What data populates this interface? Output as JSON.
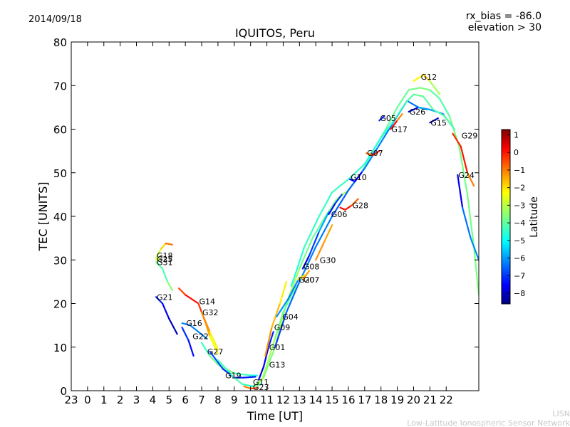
{
  "header": {
    "date": "2014/09/18",
    "rx_bias": "rx_bias = -86.0",
    "elevation": "elevation > 30"
  },
  "footer": {
    "org_short": "LISN",
    "org_full": "Low-Latitude Ionospheric Sensor Network"
  },
  "colorbar": {
    "label": "Latitude",
    "ticks": [
      {
        "value": 1,
        "label": "1"
      },
      {
        "value": 0,
        "label": "0"
      },
      {
        "value": -1,
        "label": "−1"
      },
      {
        "value": -2,
        "label": "−2"
      },
      {
        "value": -3,
        "label": "−3"
      },
      {
        "value": -4,
        "label": "−4"
      },
      {
        "value": -5,
        "label": "−5"
      },
      {
        "value": -6,
        "label": "−6"
      },
      {
        "value": -7,
        "label": "−7"
      },
      {
        "value": -8,
        "label": "−8"
      }
    ],
    "range": [
      -8.6,
      1.3
    ],
    "colors": [
      "#00007f",
      "#0000ff",
      "#007fff",
      "#00ffff",
      "#7fff7f",
      "#ffff00",
      "#ff7f00",
      "#ff0000",
      "#7f0000"
    ]
  },
  "chart_data": {
    "type": "line",
    "title": "IQUITOS, Peru",
    "xlabel": "Time [UT]",
    "ylabel": "TEC [UNITS]",
    "xlim": [
      -1,
      24
    ],
    "ylim": [
      0,
      80
    ],
    "x_ticks": [
      {
        "value": -1,
        "label": "23"
      },
      {
        "value": 0,
        "label": "0"
      },
      {
        "value": 1,
        "label": "1"
      },
      {
        "value": 2,
        "label": "2"
      },
      {
        "value": 3,
        "label": "3"
      },
      {
        "value": 4,
        "label": "4"
      },
      {
        "value": 5,
        "label": "5"
      },
      {
        "value": 6,
        "label": "6"
      },
      {
        "value": 7,
        "label": "7"
      },
      {
        "value": 8,
        "label": "8"
      },
      {
        "value": 9,
        "label": "9"
      },
      {
        "value": 10,
        "label": "10"
      },
      {
        "value": 11,
        "label": "11"
      },
      {
        "value": 12,
        "label": "12"
      },
      {
        "value": 13,
        "label": "13"
      },
      {
        "value": 14,
        "label": "14"
      },
      {
        "value": 15,
        "label": "15"
      },
      {
        "value": 16,
        "label": "16"
      },
      {
        "value": 17,
        "label": "17"
      },
      {
        "value": 18,
        "label": "18"
      },
      {
        "value": 19,
        "label": "19"
      },
      {
        "value": 20,
        "label": "20"
      },
      {
        "value": 21,
        "label": "21"
      },
      {
        "value": 22,
        "label": "22"
      }
    ],
    "y_ticks": [
      0,
      10,
      20,
      30,
      40,
      50,
      60,
      70,
      80
    ],
    "series": [
      {
        "name": "G18",
        "label_at": [
          4.2,
          31
        ],
        "points": [
          [
            4.2,
            30.5,
            -3.5
          ],
          [
            4.5,
            32.5,
            -2.5
          ],
          [
            4.8,
            33.8,
            -1.5
          ],
          [
            5.2,
            33.5,
            -0.5
          ]
        ]
      },
      {
        "name": "G31",
        "label_at": [
          4.2,
          29.5
        ],
        "points": [
          [
            4.2,
            29.5,
            -4.2
          ],
          [
            4.6,
            28.0,
            -3.8
          ],
          [
            4.9,
            25.0,
            -4.5
          ],
          [
            5.2,
            23.0,
            -2.5
          ]
        ]
      },
      {
        "name": "G25",
        "label_at": [
          4.2,
          30.2
        ],
        "points": [
          [
            4.2,
            30.0,
            -3.0
          ],
          [
            4.4,
            30.2,
            -2.8
          ]
        ]
      },
      {
        "name": "G21",
        "label_at": [
          4.2,
          21.5
        ],
        "points": [
          [
            4.2,
            21.5,
            -6.8
          ],
          [
            4.6,
            20.0,
            -7.2
          ],
          [
            5.0,
            16.5,
            -7.8
          ],
          [
            5.5,
            13.0,
            -8.2
          ]
        ]
      },
      {
        "name": "G14",
        "label_at": [
          6.8,
          20.5
        ],
        "points": [
          [
            5.6,
            23.5,
            -1.0
          ],
          [
            6.0,
            22.0,
            -0.3
          ],
          [
            6.8,
            20.0,
            0.2
          ],
          [
            7.2,
            16.0,
            -1.0
          ],
          [
            7.5,
            12.5,
            -2.0
          ],
          [
            8.0,
            8.5,
            -3.0
          ]
        ]
      },
      {
        "name": "G32",
        "label_at": [
          7.0,
          18.0
        ],
        "points": [
          [
            7.0,
            18.0,
            -0.8
          ],
          [
            7.5,
            13.5,
            -1.8
          ],
          [
            8.0,
            9.5,
            -2.8
          ]
        ]
      },
      {
        "name": "G16",
        "label_at": [
          6.0,
          15.5
        ],
        "points": [
          [
            5.8,
            15.5,
            -6.0
          ],
          [
            6.3,
            15.0,
            -6.2
          ],
          [
            6.8,
            13.5,
            -6.0
          ],
          [
            7.3,
            12.0,
            -6.2
          ]
        ]
      },
      {
        "name": "G22",
        "label_at": [
          6.4,
          12.5
        ],
        "points": [
          [
            5.8,
            14.5,
            -6.8
          ],
          [
            6.2,
            11.5,
            -7.0
          ],
          [
            6.5,
            8.0,
            -7.5
          ]
        ]
      },
      {
        "name": "G27",
        "label_at": [
          7.3,
          9.0
        ],
        "points": [
          [
            7.0,
            11.0,
            -4.5
          ],
          [
            7.5,
            8.0,
            -4.0
          ],
          [
            8.0,
            6.0,
            -3.5
          ],
          [
            9.0,
            4.0,
            -4.0
          ],
          [
            10.0,
            3.5,
            -4.5
          ],
          [
            10.4,
            3.5,
            -4.8
          ]
        ]
      },
      {
        "name": "G19",
        "label_at": [
          8.4,
          3.5
        ],
        "points": [
          [
            7.5,
            9.0,
            -6.5
          ],
          [
            8.3,
            5.0,
            -6.8
          ],
          [
            9.0,
            3.0,
            -7.0
          ],
          [
            9.6,
            3.0,
            -7.2
          ],
          [
            10.3,
            3.2,
            -7.0
          ]
        ]
      },
      {
        "name": "G11",
        "label_at": [
          10.1,
          2.0
        ],
        "points": [
          [
            8.0,
            7.0,
            -4.5
          ],
          [
            9.0,
            3.0,
            -4.0
          ],
          [
            9.5,
            1.5,
            -4.2
          ],
          [
            10.1,
            1.0,
            -4.5
          ],
          [
            10.6,
            1.5,
            -4.8
          ]
        ]
      },
      {
        "name": "G23",
        "label_at": [
          10.1,
          0.8
        ],
        "points": [
          [
            9.6,
            1.0,
            -1.5
          ],
          [
            10.0,
            0.5,
            -0.8
          ],
          [
            10.4,
            0.6,
            -0.3
          ]
        ]
      },
      {
        "name": "G13",
        "label_at": [
          11.1,
          6.0
        ],
        "points": [
          [
            10.3,
            1.0,
            -3.0
          ],
          [
            10.7,
            2.5,
            -3.5
          ],
          [
            11.0,
            6.0,
            -3.0
          ],
          [
            11.5,
            12.0,
            -3.5
          ],
          [
            12.0,
            18.0,
            -4.0
          ],
          [
            12.8,
            24.0,
            -3.8
          ]
        ]
      },
      {
        "name": "G01",
        "label_at": [
          11.1,
          10.0
        ],
        "points": [
          [
            10.5,
            2.5,
            -8.0
          ],
          [
            10.8,
            5.5,
            -7.6
          ],
          [
            11.1,
            10.0,
            -7.2
          ],
          [
            11.4,
            13.5,
            -6.8
          ]
        ]
      },
      {
        "name": "G09",
        "label_at": [
          11.4,
          14.5
        ],
        "points": [
          [
            10.9,
            8.0,
            -1.2
          ],
          [
            11.3,
            14.5,
            -1.5
          ],
          [
            11.8,
            20.0,
            -2.0
          ],
          [
            12.2,
            25.0,
            -2.5
          ]
        ]
      },
      {
        "name": "G04",
        "label_at": [
          11.9,
          17.0
        ],
        "points": [
          [
            11.6,
            17.0,
            -5.8
          ],
          [
            12.3,
            21.0,
            -6.0
          ],
          [
            13.0,
            26.0,
            -6.2
          ]
        ]
      },
      {
        "name": "G08",
        "label_at": [
          13.2,
          28.5
        ],
        "points": [
          [
            13.2,
            28.0,
            -8.0
          ],
          [
            13.6,
            31.0,
            -7.5
          ],
          [
            14.2,
            36.5,
            -6.0
          ],
          [
            14.8,
            41.0,
            -5.5
          ]
        ]
      },
      {
        "name": "G20",
        "label_at": [
          12.9,
          25.5
        ],
        "points": [
          [
            12.9,
            25.5,
            -2.0
          ],
          [
            13.3,
            26.5,
            -2.3
          ]
        ]
      },
      {
        "name": "G07",
        "label_at": [
          13.2,
          25.5
        ],
        "points": [
          [
            13.2,
            25.5,
            -1.5
          ],
          [
            13.6,
            27.5,
            -1.5
          ]
        ]
      },
      {
        "name": "G30",
        "label_at": [
          14.2,
          30.0
        ],
        "points": [
          [
            14.0,
            30.0,
            -1.5
          ],
          [
            14.5,
            34.0,
            -1.2
          ],
          [
            15.0,
            38.0,
            -1.8
          ]
        ]
      },
      {
        "name": "G06",
        "label_at": [
          14.9,
          40.5
        ],
        "points": [
          [
            14.8,
            40.5,
            -7.5
          ],
          [
            15.2,
            43.0,
            -7.0
          ],
          [
            15.6,
            45.0,
            -6.5
          ]
        ]
      },
      {
        "name": "G28",
        "label_at": [
          16.2,
          42.5
        ],
        "points": [
          [
            15.5,
            42.0,
            -0.2
          ],
          [
            15.8,
            41.5,
            0.2
          ],
          [
            16.2,
            42.5,
            -0.5
          ],
          [
            16.6,
            44.0,
            -1.2
          ]
        ]
      },
      {
        "name": "G10",
        "label_at": [
          16.1,
          49.0
        ],
        "points": [
          [
            16.1,
            48.5,
            -7.8
          ],
          [
            16.4,
            48.0,
            -7.0
          ],
          [
            16.8,
            50.0,
            -8.0
          ]
        ]
      },
      {
        "name": "G07",
        "label_at": [
          17.1,
          54.5
        ],
        "points": [
          [
            17.1,
            54.5,
            -1.5
          ],
          [
            17.5,
            54.0,
            -0.5
          ],
          [
            17.9,
            55.0,
            0.4
          ]
        ]
      },
      {
        "name": "G05",
        "label_at": [
          17.9,
          62.5
        ],
        "points": [
          [
            17.9,
            62.0,
            -7.5
          ],
          [
            18.2,
            63.0,
            -6.5
          ]
        ]
      },
      {
        "name": "G17",
        "label_at": [
          18.6,
          60.0
        ],
        "points": [
          [
            18.6,
            60.0,
            0.5
          ],
          [
            19.0,
            62.0,
            -0.5
          ],
          [
            19.3,
            63.5,
            -2.0
          ]
        ]
      },
      {
        "name": "G26",
        "label_at": [
          19.7,
          64.0
        ],
        "points": [
          [
            19.7,
            64.0,
            -8.0
          ],
          [
            20.3,
            65.0,
            -7.5
          ],
          [
            20.8,
            64.5,
            -4.0
          ]
        ]
      },
      {
        "name": "G12",
        "label_at": [
          20.4,
          72.0
        ],
        "points": [
          [
            20.0,
            71.0,
            -3.2
          ],
          [
            20.6,
            72.5,
            -1.5
          ],
          [
            21.0,
            71.0,
            -2.5
          ],
          [
            21.6,
            68.0,
            -4.0
          ]
        ]
      },
      {
        "name": "G15",
        "label_at": [
          21.0,
          61.5
        ],
        "points": [
          [
            21.0,
            61.5,
            -8.0
          ],
          [
            21.5,
            62.5,
            -7.8
          ]
        ]
      },
      {
        "name": "G29",
        "label_at": [
          22.9,
          58.5
        ],
        "points": [
          [
            22.4,
            59.0,
            -1.2
          ],
          [
            22.9,
            56.0,
            0.5
          ],
          [
            23.3,
            50.0,
            -0.8
          ],
          [
            23.7,
            47.0,
            -1.5
          ]
        ]
      },
      {
        "name": "G24",
        "label_at": [
          22.7,
          49.5
        ],
        "points": [
          [
            22.7,
            49.5,
            -8.0
          ],
          [
            23.0,
            42.0,
            -7.0
          ],
          [
            23.5,
            35.0,
            -5.5
          ],
          [
            24.0,
            30.0,
            -6.5
          ]
        ]
      }
    ],
    "envelopes": [
      {
        "name": "main-green",
        "points": [
          [
            9.5,
            1.5,
            -3.5
          ],
          [
            10.2,
            1.0,
            -3.5
          ],
          [
            10.8,
            3.0,
            -3.8
          ],
          [
            11.5,
            10.0,
            -3.5
          ],
          [
            12.2,
            20.0,
            -3.0
          ],
          [
            13.0,
            28.0,
            -3.5
          ],
          [
            13.8,
            35.0,
            -4.0
          ],
          [
            14.6,
            40.0,
            -3.8
          ],
          [
            15.3,
            44.0,
            -3.5
          ],
          [
            16.0,
            46.0,
            -3.0
          ],
          [
            16.8,
            50.0,
            -3.8
          ],
          [
            17.5,
            55.0,
            -4.2
          ],
          [
            18.3,
            60.0,
            -4.0
          ],
          [
            19.0,
            65.0,
            -3.8
          ],
          [
            19.7,
            69.0,
            -4.0
          ],
          [
            20.4,
            69.5,
            -3.5
          ],
          [
            21.0,
            69.0,
            -3.8
          ],
          [
            21.6,
            67.0,
            -4.2
          ],
          [
            22.2,
            63.0,
            -4.0
          ],
          [
            22.8,
            56.0,
            -3.5
          ],
          [
            23.3,
            45.0,
            -4.0
          ],
          [
            23.7,
            33.0,
            -3.5
          ],
          [
            24.0,
            22.0,
            -3.8
          ]
        ]
      },
      {
        "name": "main-cyan",
        "points": [
          [
            11.5,
            10.0,
            -7.0
          ],
          [
            12.2,
            18.0,
            -6.5
          ],
          [
            13.0,
            25.0,
            -6.2
          ],
          [
            14.0,
            33.0,
            -6.0
          ],
          [
            15.0,
            40.0,
            -6.3
          ],
          [
            16.0,
            46.0,
            -6.5
          ],
          [
            17.0,
            51.0,
            -6.2
          ],
          [
            18.0,
            57.0,
            -6.0
          ],
          [
            19.0,
            63.0,
            -6.3
          ],
          [
            19.6,
            66.5,
            -6.5
          ],
          [
            20.3,
            65.0,
            -6.0
          ],
          [
            21.0,
            64.5,
            -5.8
          ],
          [
            21.8,
            63.5,
            -6.0
          ],
          [
            22.5,
            60.0,
            -6.2
          ]
        ]
      },
      {
        "name": "upper-green",
        "points": [
          [
            12.5,
            24.0,
            -4.5
          ],
          [
            13.3,
            33.0,
            -4.5
          ],
          [
            14.2,
            40.0,
            -4.2
          ],
          [
            15.0,
            45.5,
            -4.5
          ],
          [
            16.0,
            48.5,
            -4.2
          ],
          [
            17.0,
            52.0,
            -4.5
          ],
          [
            18.0,
            58.0,
            -4.6
          ],
          [
            18.8,
            62.0,
            -4.4
          ],
          [
            19.5,
            66.0,
            -4.3
          ],
          [
            20.0,
            68.0,
            -4.0
          ],
          [
            20.6,
            67.5,
            -3.8
          ],
          [
            21.2,
            64.5,
            -4.2
          ],
          [
            21.9,
            63.0,
            -4.0
          ],
          [
            22.5,
            60.0,
            -4.1
          ]
        ]
      }
    ]
  }
}
